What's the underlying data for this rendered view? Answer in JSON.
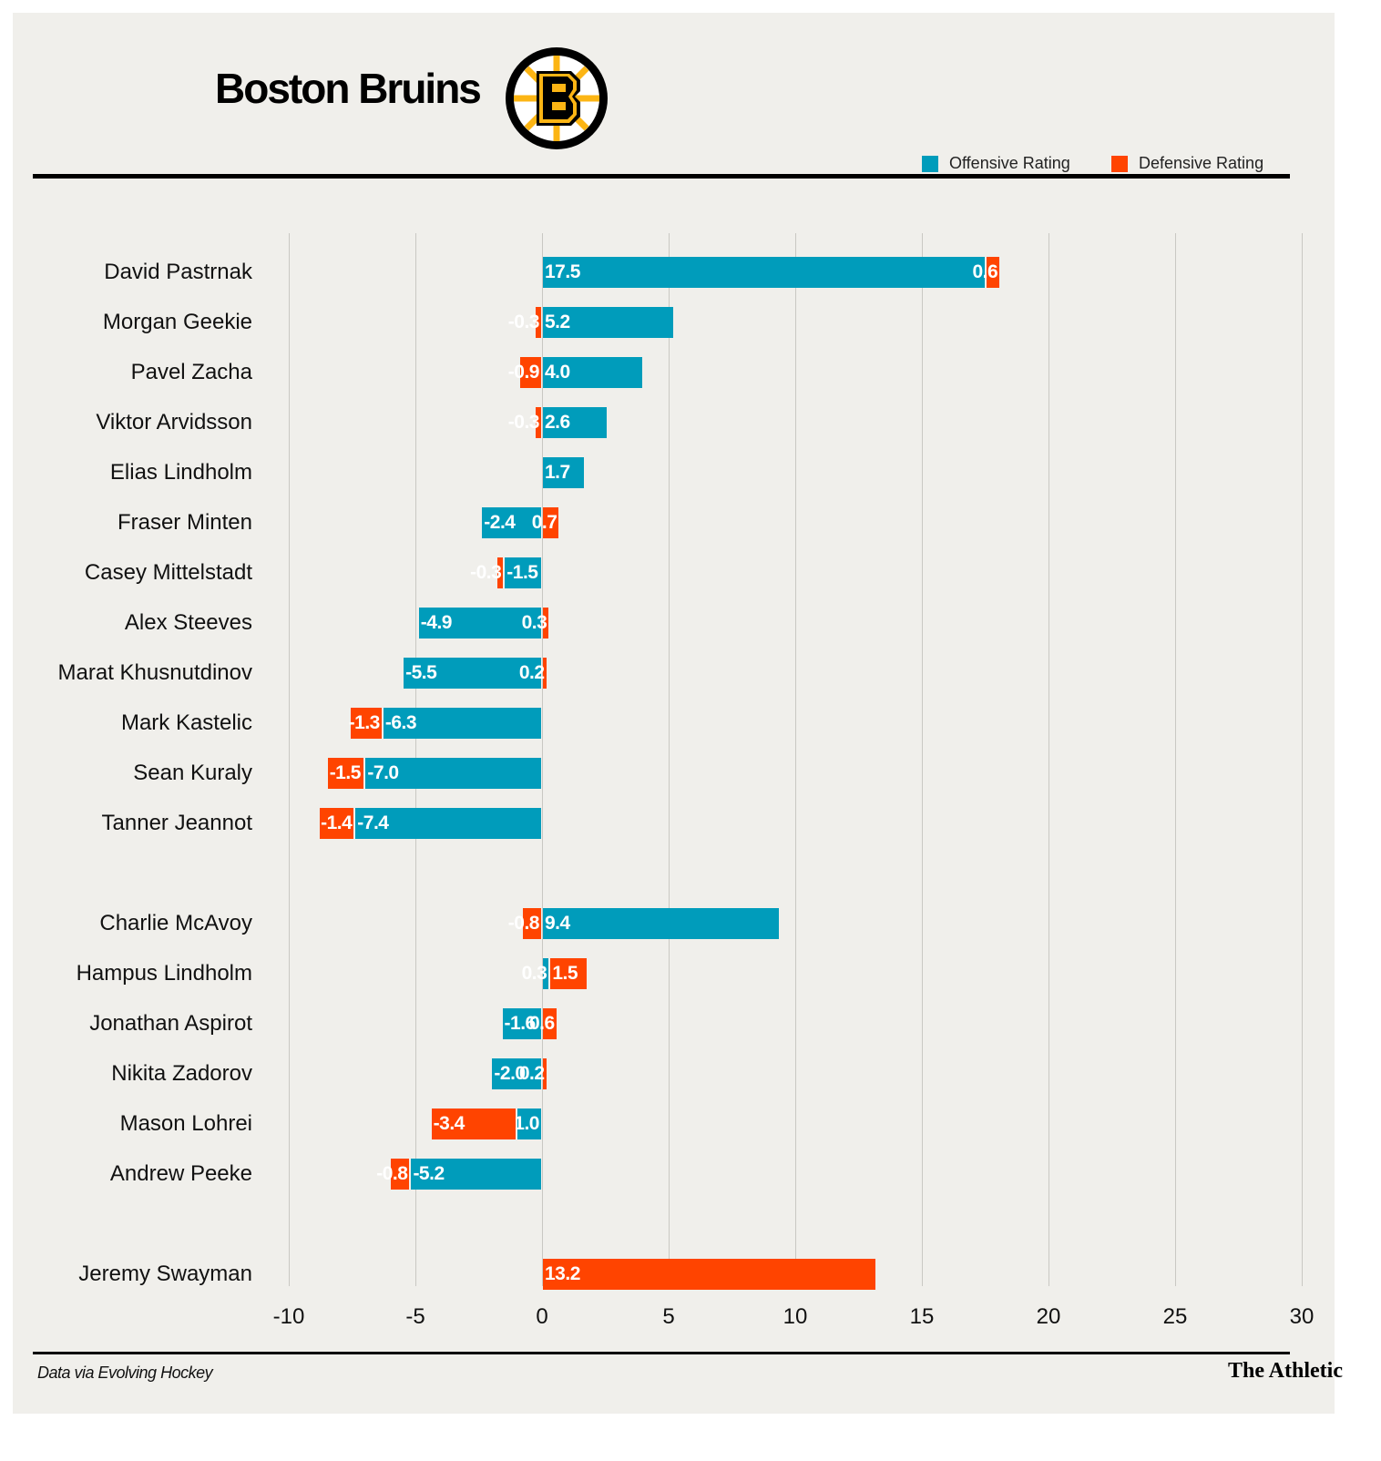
{
  "header": {
    "title": "Boston Bruins",
    "logo_text": "B"
  },
  "footer": {
    "source": "Data via Evolving Hockey",
    "brand": "The Athletic"
  },
  "colors": {
    "offensive": "#009cbb",
    "defensive": "#ff4400",
    "background": "#f0efeb"
  },
  "chart_data": {
    "type": "bar",
    "orientation": "horizontal",
    "stacked": true,
    "legend": {
      "position": "top-right",
      "entries": [
        "Offensive Rating",
        "Defensive Rating"
      ]
    },
    "xlim": [
      -10,
      30
    ],
    "xticks": [
      -10,
      -5,
      0,
      5,
      10,
      15,
      20,
      25,
      30
    ],
    "grid": true,
    "groups": [
      {
        "players": [
          {
            "name": "David Pastrnak",
            "offensive": 17.5,
            "defensive": 0.6
          },
          {
            "name": "Morgan Geekie",
            "offensive": 5.2,
            "defensive": -0.3
          },
          {
            "name": "Pavel Zacha",
            "offensive": 4.0,
            "defensive": -0.9
          },
          {
            "name": "Viktor Arvidsson",
            "offensive": 2.6,
            "defensive": -0.3
          },
          {
            "name": "Elias Lindholm",
            "offensive": 1.7,
            "defensive": 0
          },
          {
            "name": "Fraser Minten",
            "offensive": -2.4,
            "defensive": 0.7
          },
          {
            "name": "Casey Mittelstadt",
            "offensive": -1.5,
            "defensive": -0.3
          },
          {
            "name": "Alex Steeves",
            "offensive": -4.9,
            "defensive": 0.3
          },
          {
            "name": "Marat Khusnutdinov",
            "offensive": -5.5,
            "defensive": 0.2
          },
          {
            "name": "Mark Kastelic",
            "offensive": -6.3,
            "defensive": -1.3
          },
          {
            "name": "Sean Kuraly",
            "offensive": -7.0,
            "defensive": -1.5
          },
          {
            "name": "Tanner Jeannot",
            "offensive": -7.4,
            "defensive": -1.4
          }
        ]
      },
      {
        "players": [
          {
            "name": "Charlie McAvoy",
            "offensive": 9.4,
            "defensive": -0.8
          },
          {
            "name": "Hampus Lindholm",
            "offensive": 0.3,
            "defensive": 1.5
          },
          {
            "name": "Jonathan Aspirot",
            "offensive": -1.6,
            "defensive": 0.6
          },
          {
            "name": "Nikita Zadorov",
            "offensive": -2.0,
            "defensive": 0.2
          },
          {
            "name": "Mason Lohrei",
            "offensive": -1.0,
            "defensive": -3.4
          },
          {
            "name": "Andrew Peeke",
            "offensive": -5.2,
            "defensive": -0.8
          }
        ]
      },
      {
        "players": [
          {
            "name": "Jeremy Swayman",
            "offensive": 0,
            "defensive": 13.2
          }
        ]
      }
    ]
  }
}
